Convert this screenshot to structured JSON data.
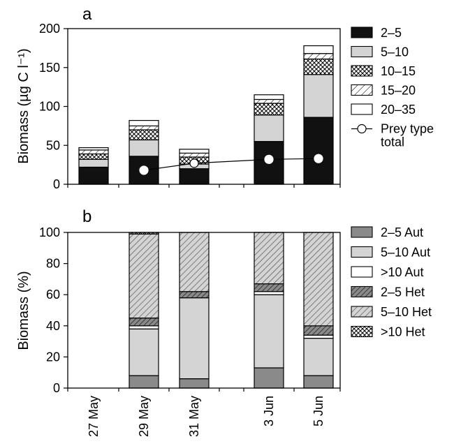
{
  "chart_data": [
    {
      "panel_label": "a",
      "type": "bar",
      "stacked": true,
      "ylabel": "Biomass (µg C l⁻¹)",
      "ylim": [
        0,
        200
      ],
      "yticks": [
        "0",
        "50",
        "100",
        "150",
        "200"
      ],
      "categories": [
        "27 May",
        "29 May",
        "31 May",
        "3 Jun",
        "5 Jun"
      ],
      "series": [
        {
          "name": "2–5",
          "fill": "black",
          "values": [
            22,
            36,
            20,
            55,
            86
          ]
        },
        {
          "name": "5–10",
          "fill": "lightgray",
          "values": [
            10,
            21,
            6,
            34,
            55
          ]
        },
        {
          "name": "10–15",
          "fill": "crosshatch",
          "values": [
            7,
            13,
            9,
            15,
            20
          ]
        },
        {
          "name": "15–20",
          "fill": "diagonal",
          "values": [
            5,
            5,
            5,
            5,
            7
          ]
        },
        {
          "name": "20–35",
          "fill": "white",
          "values": [
            3,
            7,
            5,
            6,
            10
          ]
        }
      ],
      "line_series": {
        "name": "Prey type\ntotal",
        "legend_lines": [
          "Prey type",
          "total"
        ],
        "values": [
          null,
          18,
          27,
          32,
          33
        ]
      },
      "legend_placement": "right"
    },
    {
      "panel_label": "b",
      "type": "bar",
      "stacked": true,
      "ylabel": "Biomass (%)",
      "ylim": [
        0,
        100
      ],
      "yticks": [
        "0",
        "20",
        "40",
        "60",
        "80",
        "100"
      ],
      "categories": [
        "27 May",
        "29 May",
        "31 May",
        "3 Jun",
        "5 Jun"
      ],
      "series": [
        {
          "name": "2–5 Aut",
          "fill": "darkgray",
          "values": [
            null,
            8,
            6,
            13,
            8
          ]
        },
        {
          "name": "5–10 Aut",
          "fill": "lightgray",
          "values": [
            null,
            30,
            52,
            47,
            24
          ]
        },
        {
          "name": ">10 Aut",
          "fill": "white",
          "values": [
            null,
            2,
            0,
            2,
            2
          ]
        },
        {
          "name": "2–5 Het",
          "fill": "darkdiagonal",
          "values": [
            null,
            5,
            4,
            5,
            6
          ]
        },
        {
          "name": "5–10 Het",
          "fill": "diagonal",
          "values": [
            null,
            54,
            38,
            33,
            60
          ]
        },
        {
          "name": ">10 Het",
          "fill": "crosshatch",
          "values": [
            null,
            1,
            0,
            0,
            0
          ]
        }
      ],
      "legend_placement": "right"
    }
  ]
}
